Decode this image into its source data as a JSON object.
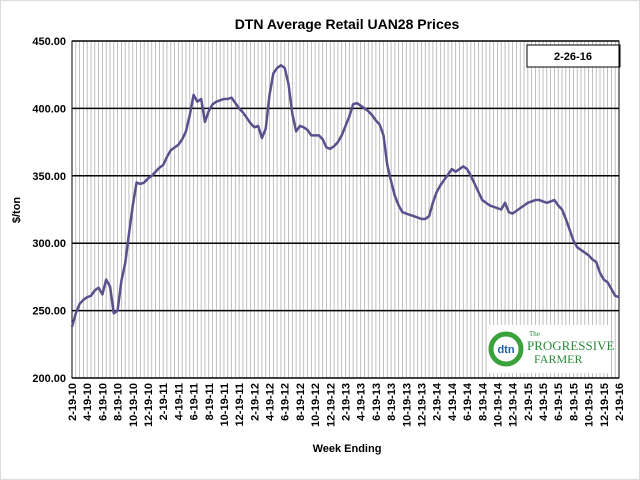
{
  "chart_data": {
    "type": "line",
    "title": "DTN Average Retail UAN28 Prices",
    "ylabel": "$/ton",
    "xlabel": "Week Ending",
    "annotation": "2-26-16",
    "logo": [
      "dtn",
      "The",
      "PROGRESSIVE",
      "FARMER"
    ],
    "categories": [
      "2-19-10",
      null,
      null,
      null,
      "4-19-10",
      null,
      null,
      null,
      "6-19-10",
      null,
      null,
      null,
      "8-19-10",
      null,
      null,
      null,
      "10-19-10",
      null,
      null,
      null,
      "12-19-10",
      null,
      null,
      null,
      "2-19-11",
      null,
      null,
      null,
      "4-19-11",
      null,
      null,
      null,
      "6-19-11",
      null,
      null,
      null,
      "8-19-11",
      null,
      null,
      null,
      "10-19-11",
      null,
      null,
      null,
      "12-19-11",
      null,
      null,
      null,
      "2-19-12",
      null,
      null,
      null,
      "4-19-12",
      null,
      null,
      null,
      "6-19-12",
      null,
      null,
      null,
      "8-19-12",
      null,
      null,
      null,
      "10-19-12",
      null,
      null,
      null,
      "12-19-12",
      null,
      null,
      null,
      "2-19-13",
      null,
      null,
      null,
      "4-19-13",
      null,
      null,
      null,
      "6-19-13",
      null,
      null,
      null,
      "8-19-13",
      null,
      null,
      null,
      "10-19-13",
      null,
      null,
      null,
      "12-19-13",
      null,
      null,
      null,
      "2-19-14",
      null,
      null,
      null,
      "4-19-14",
      null,
      null,
      null,
      "6-19-14",
      null,
      null,
      null,
      "8-19-14",
      null,
      null,
      null,
      "10-19-14",
      null,
      null,
      null,
      "12-19-14",
      null,
      null,
      null,
      "2-19-15",
      null,
      null,
      null,
      "4-19-15",
      null,
      null,
      null,
      "6-19-15",
      null,
      null,
      null,
      "8-19-15",
      null,
      null,
      null,
      "10-19-15",
      null,
      null,
      null,
      "12-19-15",
      null,
      null,
      null,
      "2-19-16"
    ],
    "series": [
      {
        "name": "UAN28",
        "color": "#5b4f8c",
        "values": [
          238,
          248,
          255,
          258,
          260,
          261,
          265,
          267,
          262,
          273,
          268,
          248,
          250,
          272,
          285,
          307,
          328,
          345,
          344,
          345,
          348,
          350,
          353,
          356,
          358,
          364,
          369,
          371,
          373,
          377,
          383,
          395,
          410,
          405,
          407,
          390,
          398,
          403,
          405,
          406,
          407,
          407,
          408,
          404,
          400,
          397,
          393,
          389,
          386,
          387,
          378,
          385,
          410,
          426,
          430,
          432,
          430,
          418,
          396,
          383,
          387,
          386,
          384,
          380,
          380,
          380,
          377,
          371,
          370,
          372,
          375,
          380,
          387,
          394,
          403,
          404,
          402,
          400,
          398,
          395,
          391,
          388,
          380,
          358,
          346,
          335,
          328,
          323,
          322,
          321,
          320,
          319,
          318,
          318,
          320,
          330,
          338,
          343,
          347,
          351,
          355,
          353,
          355,
          357,
          355,
          350,
          344,
          338,
          332,
          330,
          328,
          327,
          326,
          325,
          330,
          323,
          322,
          324,
          326,
          328,
          330,
          331,
          332,
          332,
          331,
          330,
          331,
          332,
          328,
          325,
          318,
          310,
          302,
          297,
          295,
          293,
          291,
          288,
          286,
          278,
          273,
          271,
          266,
          261,
          260
        ]
      }
    ],
    "ylim": [
      200,
      450
    ],
    "yticks": [
      {
        "value": 200,
        "label": "200.00"
      },
      {
        "value": 250,
        "label": "250.00"
      },
      {
        "value": 300,
        "label": "300.00"
      },
      {
        "value": 350,
        "label": "350.00"
      },
      {
        "value": 400,
        "label": "400.00"
      },
      {
        "value": 450,
        "label": "450.00"
      }
    ],
    "grid": true
  }
}
